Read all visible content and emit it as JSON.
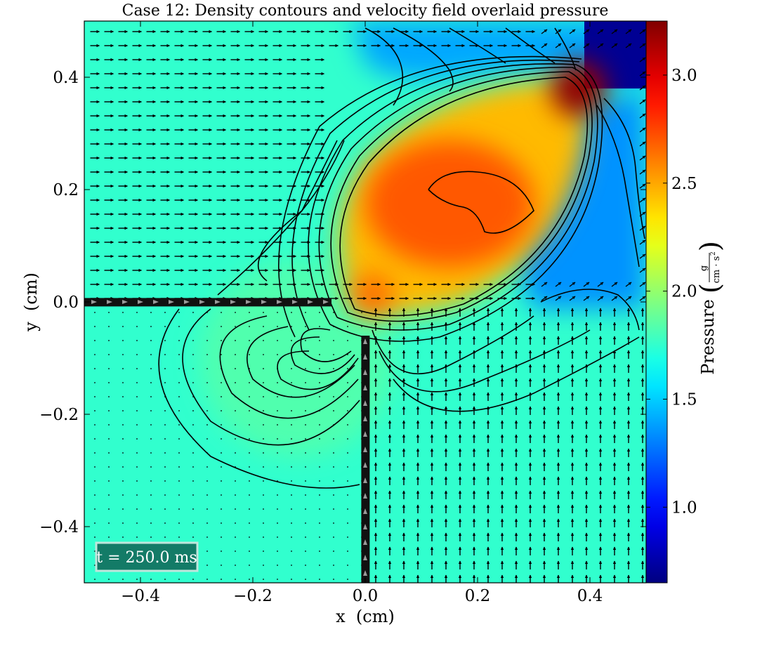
{
  "chart_data": {
    "type": "heatmap",
    "title": "Case 12: Density contours and velocity field overlaid pressure",
    "xlabel": "x  (cm)",
    "ylabel": "y  (cm)",
    "xlim": [
      -0.5,
      0.5
    ],
    "ylim": [
      -0.5,
      0.5
    ],
    "xticks": [
      -0.4,
      -0.2,
      0.0,
      0.2,
      0.4
    ],
    "xtick_labels": [
      "−0.4",
      "−0.2",
      "0.0",
      "0.2",
      "0.4"
    ],
    "yticks": [
      -0.4,
      -0.2,
      0.0,
      0.2,
      0.4
    ],
    "ytick_labels": [
      "−0.4",
      "−0.2",
      "0.0",
      "0.2",
      "0.4"
    ],
    "colorbar": {
      "label": "Pressure",
      "unit_numerator": "g",
      "unit_denominator": "cm · s",
      "unit_exponent": "2",
      "range": [
        0.65,
        3.25
      ],
      "ticks": [
        1.0,
        1.5,
        2.0,
        2.5,
        3.0
      ],
      "tick_labels": [
        "1.0",
        "1.5",
        "2.0",
        "2.5",
        "3.0"
      ],
      "colormap": "jet"
    },
    "pressure_field": {
      "ambient": 1.75,
      "regions": [
        {
          "label": "shocked lobe",
          "center": [
            0.2,
            0.2
          ],
          "value": 2.7
        },
        {
          "label": "triple point",
          "center": [
            0.38,
            0.38
          ],
          "value": 3.2
        },
        {
          "label": "upper-right quadrant",
          "center": [
            0.45,
            0.42
          ],
          "value": 0.7
        },
        {
          "label": "right of lobe",
          "center": [
            0.45,
            0.1
          ],
          "value": 1.35
        },
        {
          "label": "lower-left bulge",
          "center": [
            -0.12,
            -0.1
          ],
          "value": 1.85
        }
      ]
    },
    "velocity_field": {
      "upper_left": {
        "direction": "+x"
      },
      "lower_right": {
        "direction": "+y"
      },
      "lower_left": {
        "direction": "small"
      }
    },
    "annotation": "t = 250.0 ms"
  }
}
